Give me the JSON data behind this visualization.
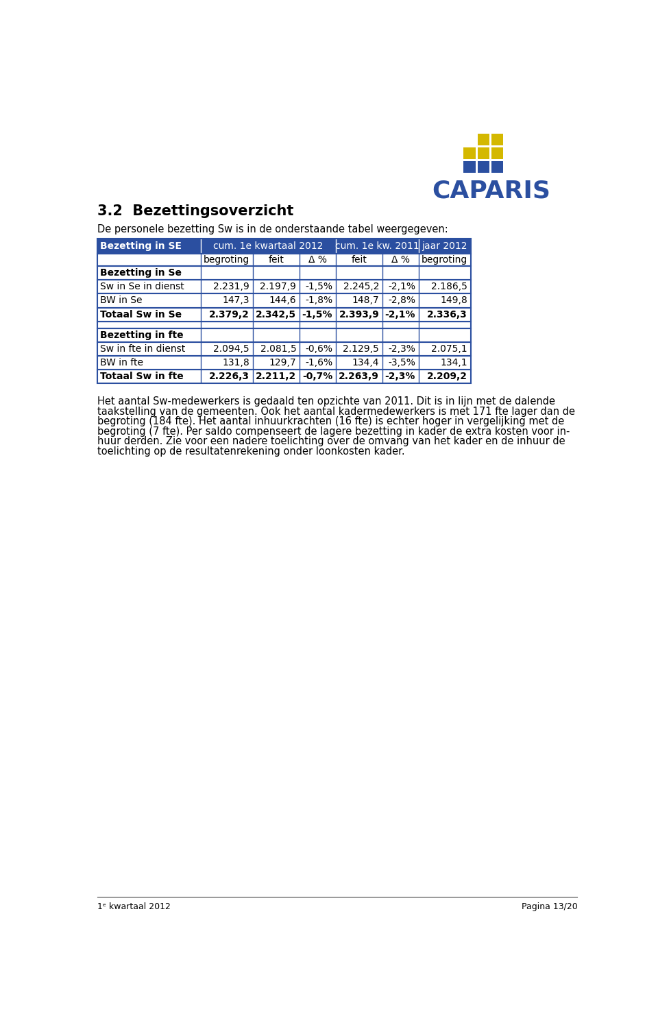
{
  "page_title": "3.2  Bezettingsoverzicht",
  "subtitle": "De personele bezetting Sw is in de onderstaande tabel weergegeven:",
  "footer_left": "1ᵉ kwartaal 2012",
  "footer_right": "Pagina 13/20",
  "header_col": "Bezetting in SE",
  "col_group1": "cum. 1e kwartaal 2012",
  "col_group2": "cum. 1e kw. 2011",
  "col_group3": "jaar 2012",
  "col_headers": [
    "begroting",
    "feit",
    "Δ %",
    "feit",
    "Δ %",
    "begroting"
  ],
  "table_rows": [
    {
      "label": "Bezetting in Se",
      "bold": true,
      "empty_row": false,
      "section_label": true,
      "values": [
        "",
        "",
        "",
        "",
        "",
        ""
      ]
    },
    {
      "label": "Sw in Se in dienst",
      "bold": false,
      "empty_row": false,
      "section_label": false,
      "values": [
        "2.231,9",
        "2.197,9",
        "-1,5%",
        "2.245,2",
        "-2,1%",
        "2.186,5"
      ]
    },
    {
      "label": "BW in Se",
      "bold": false,
      "empty_row": false,
      "section_label": false,
      "values": [
        "147,3",
        "144,6",
        "-1,8%",
        "148,7",
        "-2,8%",
        "149,8"
      ]
    },
    {
      "label": "Totaal Sw in Se",
      "bold": true,
      "empty_row": false,
      "section_label": false,
      "values": [
        "2.379,2",
        "2.342,5",
        "-1,5%",
        "2.393,9",
        "-2,1%",
        "2.336,3"
      ]
    },
    {
      "label": "",
      "bold": false,
      "empty_row": true,
      "section_label": false,
      "values": [
        "",
        "",
        "",
        "",
        "",
        ""
      ]
    },
    {
      "label": "Bezetting in fte",
      "bold": true,
      "empty_row": false,
      "section_label": true,
      "values": [
        "",
        "",
        "",
        "",
        "",
        ""
      ]
    },
    {
      "label": "Sw in fte in dienst",
      "bold": false,
      "empty_row": false,
      "section_label": false,
      "values": [
        "2.094,5",
        "2.081,5",
        "-0,6%",
        "2.129,5",
        "-2,3%",
        "2.075,1"
      ]
    },
    {
      "label": "BW in fte",
      "bold": false,
      "empty_row": false,
      "section_label": false,
      "values": [
        "131,8",
        "129,7",
        "-1,6%",
        "134,4",
        "-3,5%",
        "134,1"
      ]
    },
    {
      "label": "Totaal Sw in fte",
      "bold": true,
      "empty_row": false,
      "section_label": false,
      "values": [
        "2.226,3",
        "2.211,2",
        "-0,7%",
        "2.263,9",
        "-2,3%",
        "2.209,2"
      ]
    }
  ],
  "body_text_lines": [
    "Het aantal Sw-medewerkers is gedaald ten opzichte van 2011. Dit is in lijn met de dalende",
    "taakstelling van de gemeenten. Ook het aantal kadermedewerkers is met 171 fte lager dan de",
    "begroting (184 fte). Het aantal inhuurkrachten (16 fte) is echter hoger in vergelijking met de",
    "begroting (7 fte). Per saldo compenseert de lagere bezetting in kader de extra kosten voor in-",
    "huur derden. Zie voor een nadere toelichting over de omvang van het kader en de inhuur de",
    "toelichting op de resultatenrekening onder loonkosten kader."
  ],
  "header_bg": "#2B4FA0",
  "header_fg": "#FFFFFF",
  "border_color": "#2B4FA0",
  "logo_yellow": "#D4B800",
  "logo_blue": "#2B4FA0",
  "logo_text": "CAPARIS",
  "logo_grid": [
    [
      null,
      "yellow",
      "yellow"
    ],
    [
      "yellow",
      "yellow",
      "yellow"
    ],
    [
      "blue",
      "blue",
      "blue"
    ]
  ]
}
